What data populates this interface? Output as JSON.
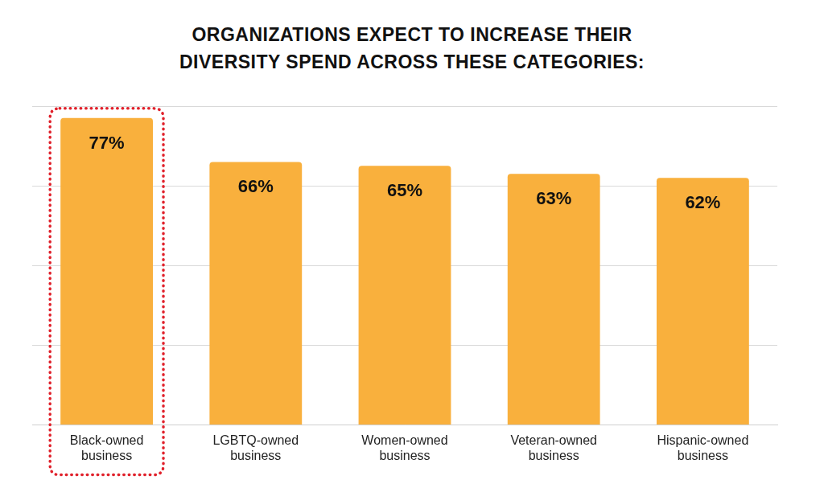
{
  "chart_data": {
    "type": "bar",
    "title": "ORGANIZATIONS EXPECT TO INCREASE THEIR DIVERSITY SPEND ACROSS THESE CATEGORIES:",
    "categories": [
      "Black-owned business",
      "LGBTQ-owned business",
      "Women-owned business",
      "Veteran-owned business",
      "Hispanic-owned business"
    ],
    "values": [
      77,
      66,
      65,
      63,
      62
    ],
    "value_labels": [
      "77%",
      "66%",
      "65%",
      "63%",
      "62%"
    ],
    "color": "#f9b03d",
    "ylim": [
      0,
      80
    ],
    "yticks": [
      0,
      20,
      40,
      60,
      80
    ],
    "grid": true,
    "data_labels": true,
    "tick_labels": "x"
  }
}
